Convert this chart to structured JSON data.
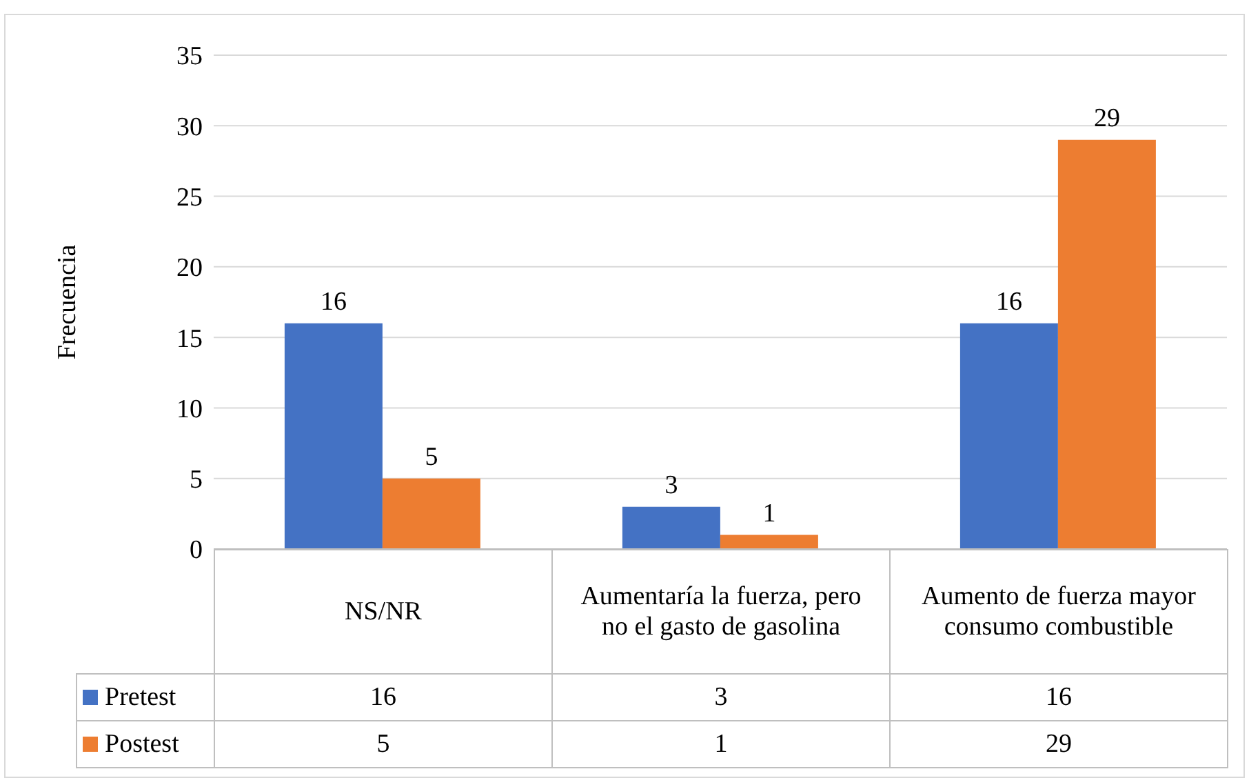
{
  "chart_data": {
    "type": "bar",
    "ylabel": "Frecuencia",
    "categories": [
      "NS/NR",
      "Aumentaría la fuerza, pero no el gasto de gasolina",
      "Aumento de fuerza mayor consumo combustible"
    ],
    "series": [
      {
        "name": "Pretest",
        "color": "#4472c4",
        "values": [
          16,
          3,
          16
        ],
        "value_labels": [
          "16",
          "3",
          "16"
        ]
      },
      {
        "name": "Postest",
        "color": "#ed7d31",
        "values": [
          5,
          1,
          29
        ],
        "value_labels": [
          "5",
          "1",
          "29"
        ]
      }
    ],
    "ylim": [
      0,
      35
    ],
    "yticks": [
      0,
      5,
      10,
      15,
      20,
      25,
      30,
      35
    ],
    "grid": "y",
    "legend": "bottom left",
    "data_labels": true
  }
}
